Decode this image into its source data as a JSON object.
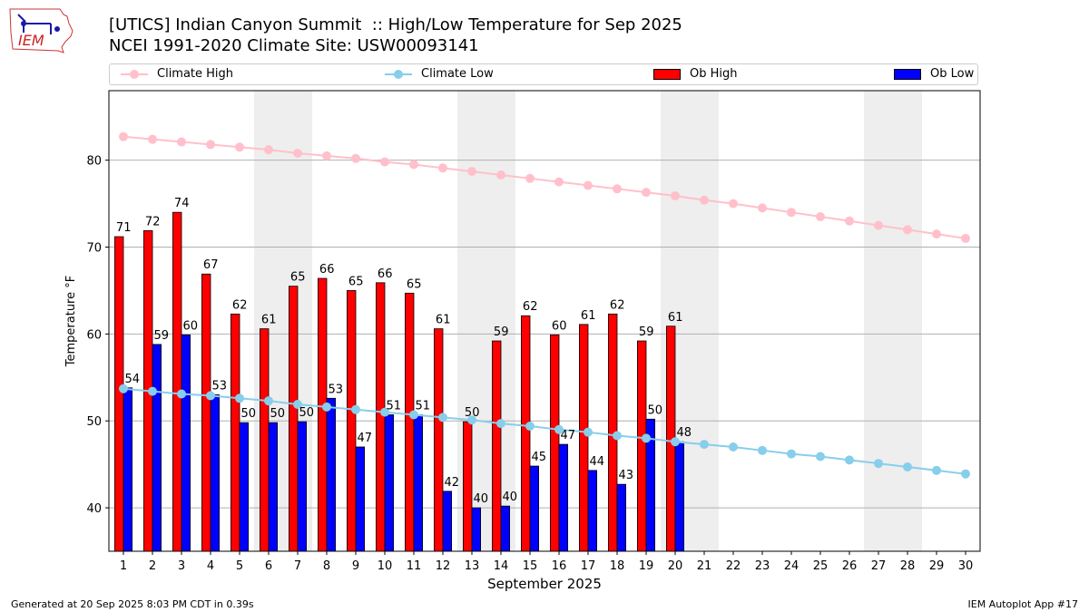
{
  "title_line1": "[UTICS] Indian Canyon Summit  :: High/Low Temperature for Sep 2025",
  "title_line2": "NCEI 1991-2020 Climate Site: USW00093141",
  "logo_text": "IEM",
  "footer_left": "Generated at 20 Sep 2025 8:03 PM CDT in 0.39s",
  "footer_right": "IEM Autoplot App #17",
  "legend": {
    "climate_high": "Climate High",
    "climate_low": "Climate Low",
    "ob_high": "Ob High",
    "ob_low": "Ob Low"
  },
  "colors": {
    "ob_high": "#ff0000",
    "ob_low": "#0000ff",
    "climate_high": "#ffc0cb",
    "climate_low": "#87ceeb",
    "weekend_shade": "#eeeeee"
  },
  "chart_data": {
    "type": "bar",
    "xlabel": "September 2025",
    "ylabel": "Temperature °F",
    "xlim": [
      0.5,
      30.5
    ],
    "ylim": [
      35,
      88
    ],
    "yticks": [
      40,
      50,
      60,
      70,
      80
    ],
    "grid": "horizontal",
    "legend_position": "top",
    "days": [
      1,
      2,
      3,
      4,
      5,
      6,
      7,
      8,
      9,
      10,
      11,
      12,
      13,
      14,
      15,
      16,
      17,
      18,
      19,
      20,
      21,
      22,
      23,
      24,
      25,
      26,
      27,
      28,
      29,
      30
    ],
    "shaded_days": [
      [
        6,
        7
      ],
      [
        13,
        14
      ],
      [
        20,
        21
      ],
      [
        27,
        28
      ]
    ],
    "series": [
      {
        "name": "Ob High",
        "kind": "bar",
        "values": [
          71.2,
          71.9,
          74.0,
          66.9,
          62.3,
          60.6,
          65.5,
          66.4,
          65.0,
          65.9,
          64.7,
          60.6,
          49.9,
          59.2,
          62.1,
          59.9,
          61.1,
          62.3,
          59.2,
          60.9
        ],
        "labels": [
          "71",
          "72",
          "74",
          "67",
          "62",
          "61",
          "65",
          "66",
          "65",
          "66",
          "65",
          "61",
          "50",
          "59",
          "62",
          "60",
          "61",
          "62",
          "59",
          "61"
        ]
      },
      {
        "name": "Ob Low",
        "kind": "bar",
        "values": [
          53.8,
          58.8,
          59.9,
          53.0,
          49.8,
          49.8,
          49.9,
          52.6,
          47.0,
          50.7,
          50.7,
          41.9,
          40.0,
          40.2,
          44.8,
          47.3,
          44.3,
          42.7,
          50.2,
          47.6
        ],
        "labels": [
          "54",
          "59",
          "60",
          "53",
          "50",
          "50",
          "50",
          "53",
          "47",
          "51",
          "51",
          "42",
          "40",
          "40",
          "45",
          "47",
          "44",
          "43",
          "50",
          "48"
        ]
      },
      {
        "name": "Climate High",
        "kind": "line",
        "values": [
          82.7,
          82.4,
          82.1,
          81.8,
          81.5,
          81.2,
          80.8,
          80.5,
          80.2,
          79.8,
          79.5,
          79.1,
          78.7,
          78.3,
          77.9,
          77.5,
          77.1,
          76.7,
          76.3,
          75.9,
          75.4,
          75.0,
          74.5,
          74.0,
          73.5,
          73.0,
          72.5,
          72.0,
          71.5,
          71.0
        ]
      },
      {
        "name": "Climate Low",
        "kind": "line",
        "values": [
          53.7,
          53.4,
          53.1,
          52.9,
          52.6,
          52.3,
          51.9,
          51.6,
          51.3,
          51.0,
          50.7,
          50.4,
          50.1,
          49.7,
          49.4,
          49.0,
          48.7,
          48.3,
          48.0,
          47.6,
          47.3,
          47.0,
          46.6,
          46.2,
          45.9,
          45.5,
          45.1,
          44.7,
          44.3,
          43.9
        ]
      }
    ]
  }
}
